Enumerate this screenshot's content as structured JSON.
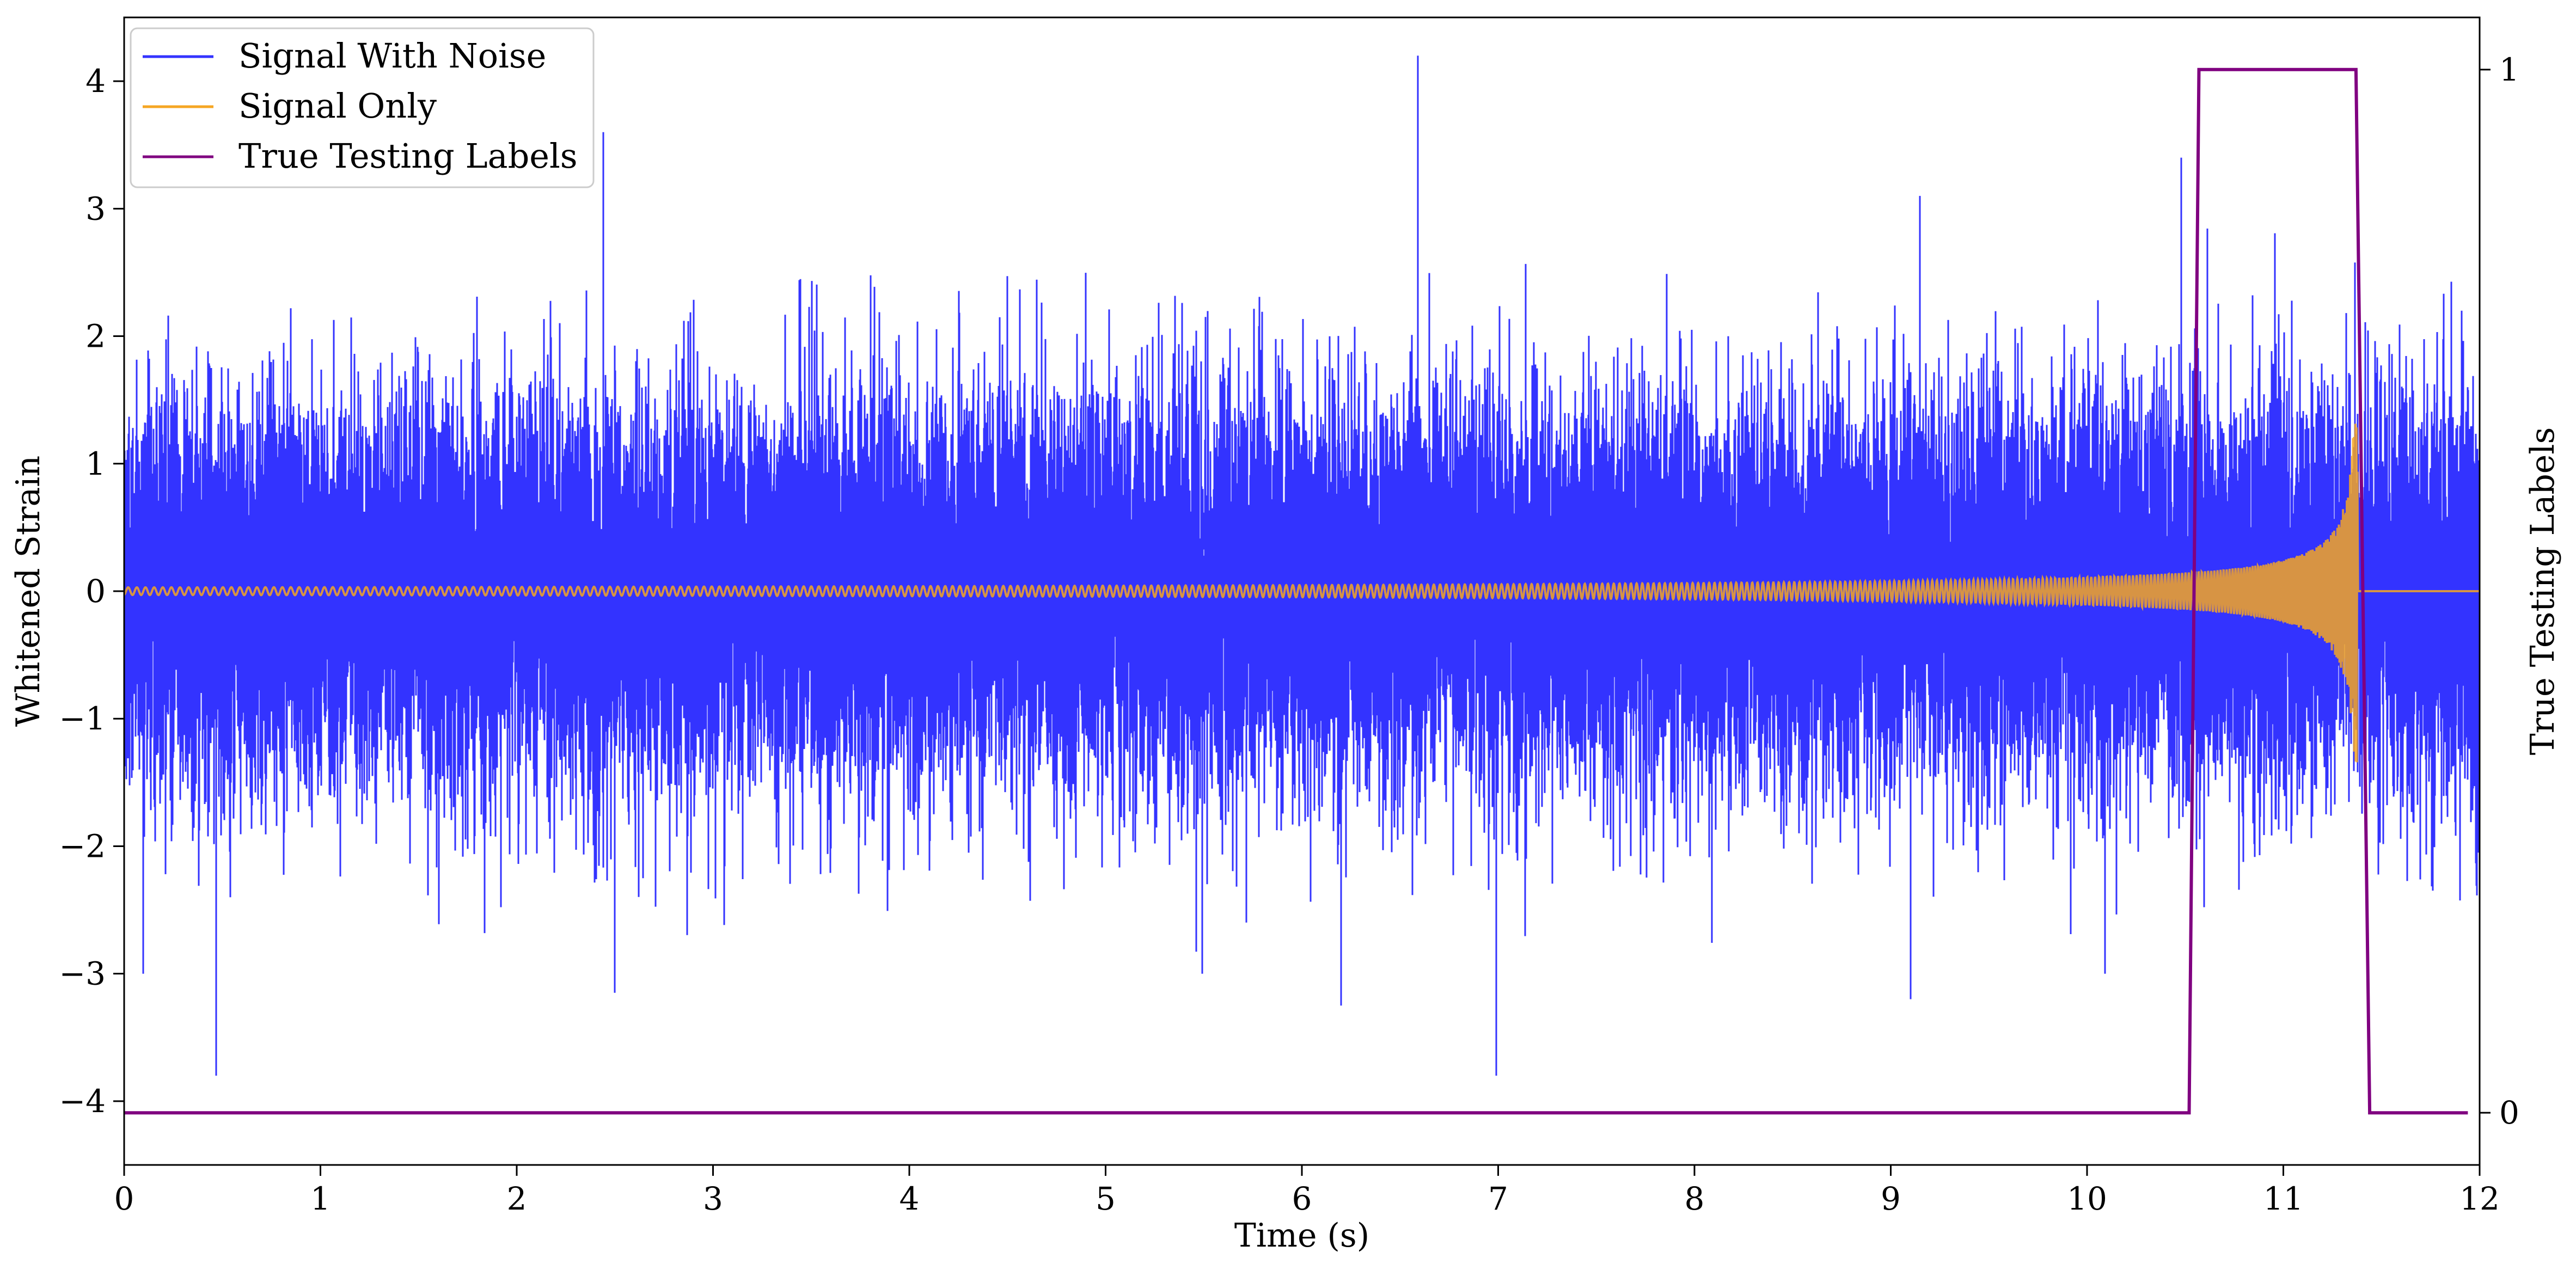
{
  "chart_data": {
    "type": "line",
    "xlabel": "Time (s)",
    "ylabel": "Whitened Strain",
    "y2label": "True Testing Labels",
    "xlim": [
      0,
      12
    ],
    "ylim": [
      -4.5,
      4.5
    ],
    "y2lim": [
      -0.05,
      1.05
    ],
    "x_ticks": [
      0,
      1,
      2,
      3,
      4,
      5,
      6,
      7,
      8,
      9,
      10,
      11,
      12
    ],
    "x_tick_labels": [
      "0",
      "1",
      "2",
      "3",
      "4",
      "5",
      "6",
      "7",
      "8",
      "9",
      "10",
      "11",
      "12"
    ],
    "y_ticks": [
      -4,
      -3,
      -2,
      -1,
      0,
      1,
      2,
      3,
      4
    ],
    "y_tick_labels": [
      "−4",
      "−3",
      "−2",
      "−1",
      "0",
      "1",
      "2",
      "3",
      "4"
    ],
    "y2_ticks": [
      0,
      1
    ],
    "y2_tick_labels": [
      "0",
      "1"
    ],
    "grid": false,
    "legend_position": "top-left",
    "series": [
      {
        "name": "Signal With Noise",
        "color": "#3333ff",
        "axis": "left",
        "x_range": [
          0,
          12
        ],
        "peaks": [
          {
            "x": 0.47,
            "y": -3.8
          },
          {
            "x": 2.44,
            "y": 3.6
          },
          {
            "x": 2.5,
            "y": -3.15
          },
          {
            "x": 6.2,
            "y": -3.25
          },
          {
            "x": 6.59,
            "y": 4.2
          },
          {
            "x": 6.99,
            "y": -3.8
          },
          {
            "x": 9.1,
            "y": -3.2
          },
          {
            "x": 10.48,
            "y": 3.4
          }
        ]
      },
      {
        "name": "Signal Only",
        "color": "#f5a623",
        "axis": "left",
        "x_range": [
          0,
          12
        ],
        "amplitude_start": 0.03,
        "peak_time": 11.38,
        "peak_amplitude": 1.35
      },
      {
        "name": "True Testing Labels",
        "color": "#800080",
        "axis": "right",
        "x": [
          0,
          10.52,
          10.57,
          11.37,
          11.44,
          11.94
        ],
        "y": [
          0,
          0,
          1,
          1,
          0,
          0
        ]
      }
    ]
  }
}
